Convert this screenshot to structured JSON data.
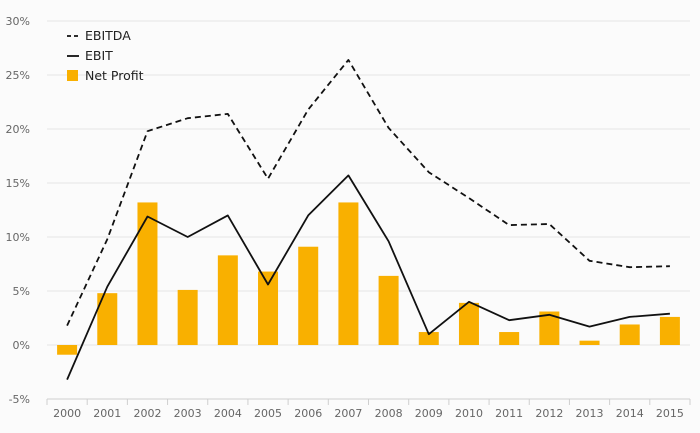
{
  "chart_data": {
    "type": "bar",
    "categories": [
      "2000",
      "2001",
      "2002",
      "2003",
      "2004",
      "2005",
      "2006",
      "2007",
      "2008",
      "2009",
      "2010",
      "2011",
      "2012",
      "2013",
      "2014",
      "2015"
    ],
    "series": [
      {
        "name": "EBITDA",
        "type": "line",
        "style": "dashed",
        "color": "#111111",
        "values": [
          1.8,
          9.8,
          19.8,
          21.0,
          21.4,
          15.4,
          21.8,
          26.4,
          20.1,
          16.0,
          13.6,
          11.1,
          11.2,
          7.8,
          7.2,
          7.3
        ]
      },
      {
        "name": "EBIT",
        "type": "line",
        "style": "solid",
        "color": "#111111",
        "values": [
          -3.2,
          5.4,
          11.9,
          10.0,
          12.0,
          5.6,
          12.0,
          15.7,
          9.6,
          1.0,
          4.0,
          2.3,
          2.8,
          1.7,
          2.6,
          2.9
        ]
      },
      {
        "name": "Net Profit",
        "type": "bar",
        "color": "#f9b000",
        "values": [
          -0.9,
          4.8,
          13.2,
          5.1,
          8.3,
          6.8,
          9.1,
          13.2,
          6.4,
          1.2,
          3.9,
          1.2,
          3.1,
          0.4,
          1.9,
          2.6
        ]
      }
    ],
    "y_ticks": [
      "-5%",
      "0%",
      "5%",
      "10%",
      "15%",
      "20%",
      "25%",
      "30%"
    ],
    "ylim": [
      -5,
      30
    ],
    "grid": true,
    "legend_position": "top-left"
  }
}
